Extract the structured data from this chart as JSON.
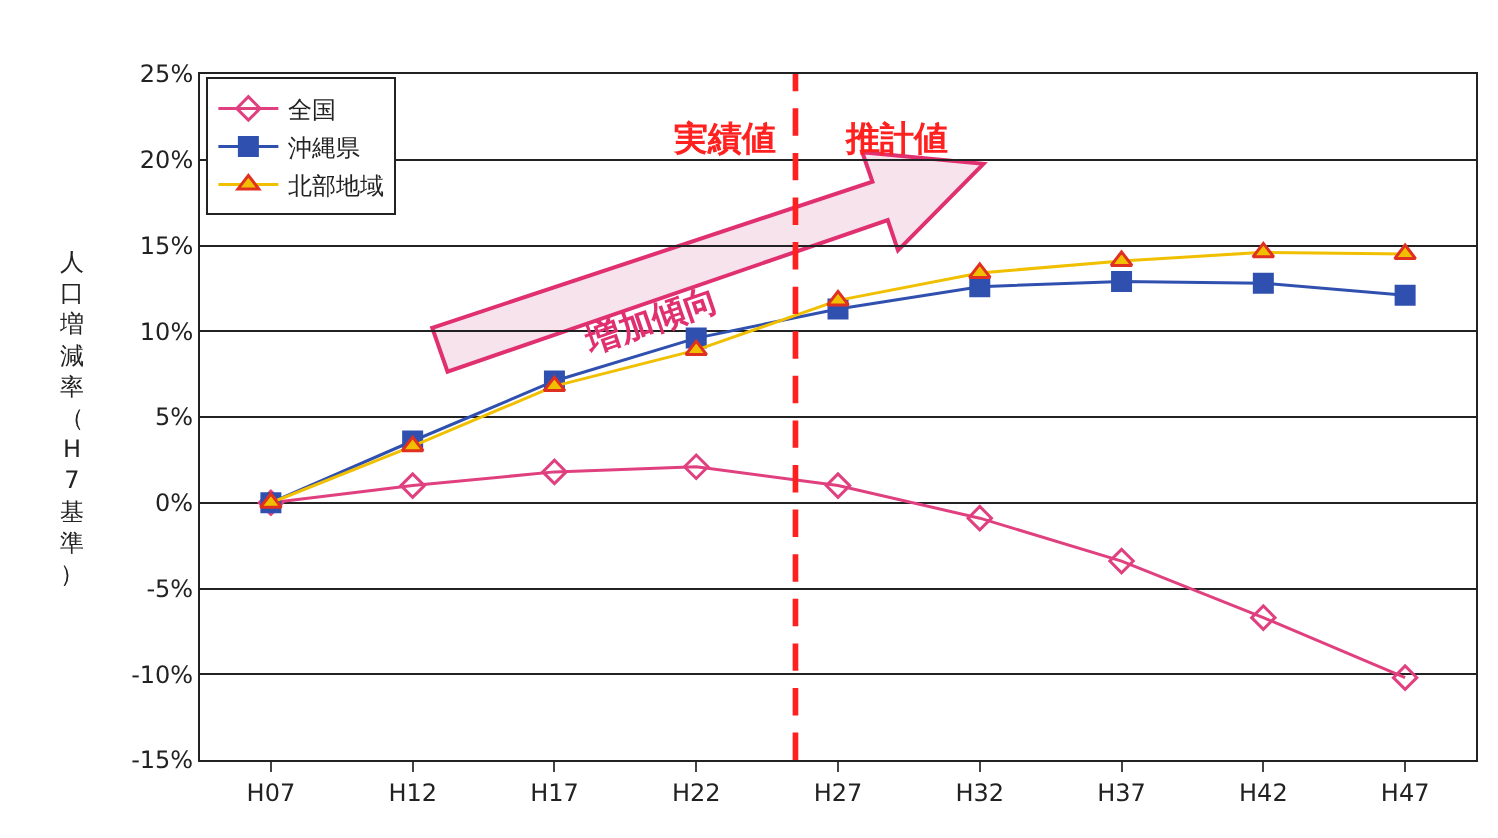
{
  "chart_data": {
    "type": "line",
    "ylabel": "人口増減率（H7基準）",
    "categories": [
      "H07",
      "H12",
      "H17",
      "H22",
      "H27",
      "H32",
      "H37",
      "H42",
      "H47"
    ],
    "series": [
      {
        "name": "全国",
        "color": "#e0407f",
        "marker": "diamond",
        "values": [
          0,
          1.0,
          1.8,
          2.1,
          1.0,
          -0.9,
          -3.4,
          -6.7,
          -10.2
        ]
      },
      {
        "name": "沖縄県",
        "color": "#3050b0",
        "marker": "square",
        "values": [
          0,
          3.6,
          7.1,
          9.6,
          11.3,
          12.6,
          12.9,
          12.8,
          12.1
        ]
      },
      {
        "name": "北部地域",
        "color": "#f0c000",
        "marker": "triangle",
        "values": [
          0,
          3.3,
          6.8,
          8.9,
          11.8,
          13.4,
          14.1,
          14.6,
          14.5
        ]
      }
    ],
    "ylim": [
      -15,
      25
    ],
    "yticks": [
      {
        "value": -15,
        "label": "-15%"
      },
      {
        "value": -10,
        "label": "-10%"
      },
      {
        "value": -5,
        "label": "-5%"
      },
      {
        "value": 0,
        "label": "0%"
      },
      {
        "value": 5,
        "label": "5%"
      },
      {
        "value": 10,
        "label": "10%"
      },
      {
        "value": 15,
        "label": "15%"
      },
      {
        "value": 20,
        "label": "20%"
      },
      {
        "value": 25,
        "label": "25%"
      }
    ],
    "grid": "y",
    "legend": "top left",
    "line_style": "solid",
    "annotations": [
      "実績値",
      "推計値",
      "増加傾向"
    ]
  }
}
